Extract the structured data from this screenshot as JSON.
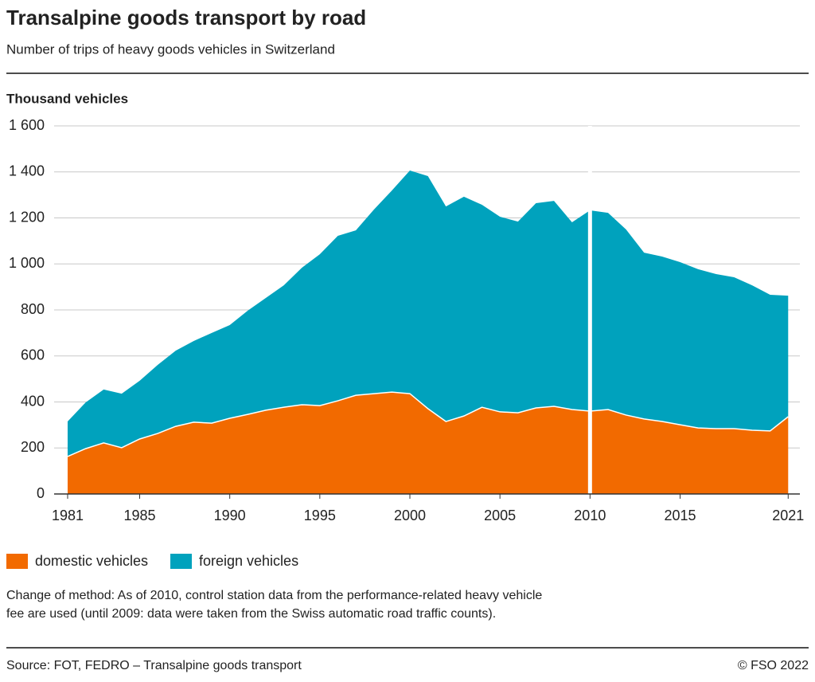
{
  "chart_data": {
    "type": "stacked-area",
    "title": "Transalpine goods transport by road",
    "subtitle": "Number of trips of heavy goods vehicles in Switzerland",
    "y_label": "Thousand vehicles",
    "x": [
      1981,
      1982,
      1983,
      1984,
      1985,
      1986,
      1987,
      1988,
      1989,
      1990,
      1991,
      1992,
      1993,
      1994,
      1995,
      1996,
      1997,
      1998,
      1999,
      2000,
      2001,
      2002,
      2003,
      2004,
      2005,
      2006,
      2007,
      2008,
      2009,
      2010,
      2011,
      2012,
      2013,
      2014,
      2015,
      2016,
      2017,
      2018,
      2019,
      2020,
      2021
    ],
    "series": [
      {
        "name": "domestic vehicles",
        "color": "#f26a00",
        "values": [
          163,
          197,
          222,
          201,
          239,
          263,
          294,
          312,
          308,
          329,
          346,
          364,
          377,
          388,
          384,
          405,
          429,
          436,
          443,
          436,
          371,
          315,
          339,
          377,
          357,
          353,
          374,
          381,
          367,
          360,
          367,
          343,
          326,
          315,
          301,
          287,
          284,
          284,
          277,
          274,
          336
        ]
      },
      {
        "name": "foreign vehicles",
        "color": "#00a2bd",
        "values": [
          152,
          201,
          232,
          235,
          253,
          298,
          329,
          353,
          392,
          405,
          451,
          488,
          530,
          595,
          658,
          717,
          717,
          800,
          876,
          970,
          1011,
          935,
          953,
          880,
          848,
          831,
          890,
          893,
          814,
          873,
          855,
          807,
          723,
          717,
          707,
          690,
          672,
          658,
          630,
          592,
          526
        ]
      }
    ],
    "method_break": 2010,
    "xlim": [
      1980.25,
      2021.65
    ],
    "xticks": [
      1981,
      1985,
      1990,
      1995,
      2000,
      2005,
      2010,
      2015,
      2021
    ],
    "ylim": [
      0,
      1600
    ],
    "yticks": [
      0,
      200,
      400,
      600,
      800,
      {
        "value": 1000,
        "label": "1 000"
      },
      {
        "value": 1200,
        "label": "1 200"
      },
      {
        "value": 1400,
        "label": "1 400"
      },
      {
        "value": 1600,
        "label": "1 600"
      }
    ],
    "grid": true,
    "note": [
      "Change of method: As of 2010, control station data from the performance-related heavy vehicle",
      "fee are used (until 2009: data were taken from the Swiss automatic road traffic counts)."
    ],
    "source": "Source: FOT, FEDRO – Transalpine goods transport",
    "copyright": "© FSO 2022"
  }
}
